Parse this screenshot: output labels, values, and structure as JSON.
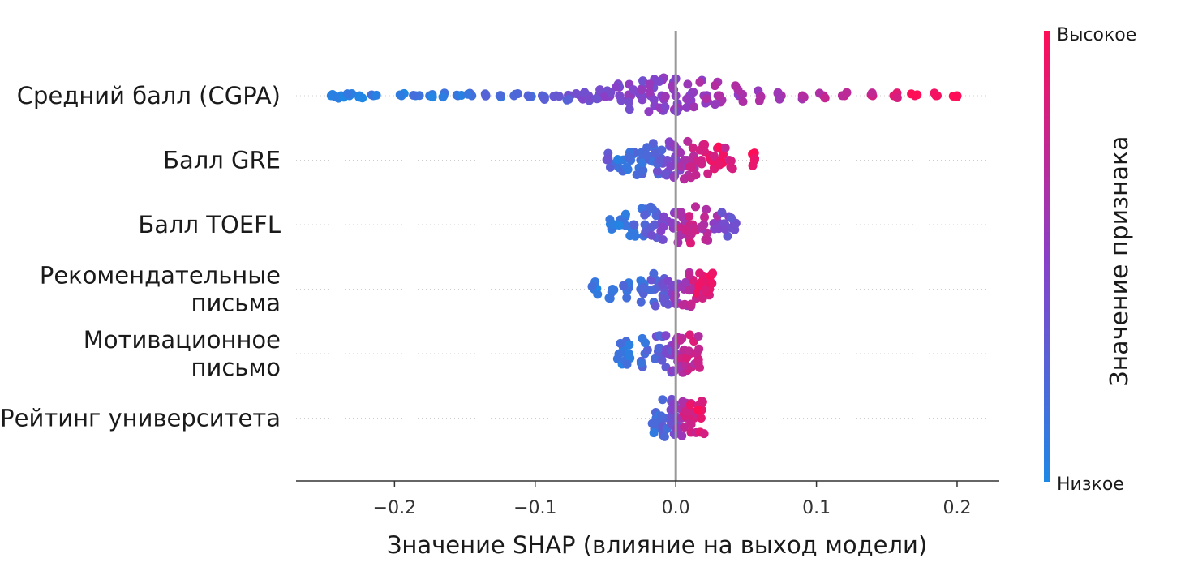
{
  "chart_data": {
    "type": "scatter",
    "subtype": "shap-beeswarm",
    "xlabel": "Значение SHAP (влияние на выход модели)",
    "xlim": [
      -0.27,
      0.23
    ],
    "xticks": [
      -0.2,
      -0.1,
      0.0,
      0.1,
      0.2
    ],
    "xtick_labels": [
      "−0.2",
      "−0.1",
      "0.0",
      "0.1",
      "0.2"
    ],
    "grid": false,
    "colorbar": {
      "title": "Значение признака",
      "high_label": "Высокое",
      "low_label": "Низкое",
      "low_color": "#1e88e5",
      "high_color": "#ff0d57"
    },
    "features": [
      {
        "name_lines": [
          "Средний балл (CGPA)"
        ],
        "points": [
          {
            "x": -0.245,
            "v": 0.02
          },
          {
            "x": -0.238,
            "v": 0.03
          },
          {
            "x": -0.232,
            "v": 0.05
          },
          {
            "x": -0.225,
            "v": 0.04
          },
          {
            "x": -0.215,
            "v": 0.06
          },
          {
            "x": -0.195,
            "v": 0.08
          },
          {
            "x": -0.185,
            "v": 0.1
          },
          {
            "x": -0.175,
            "v": 0.1
          },
          {
            "x": -0.165,
            "v": 0.12
          },
          {
            "x": -0.155,
            "v": 0.14
          },
          {
            "x": -0.145,
            "v": 0.16
          },
          {
            "x": -0.135,
            "v": 0.18
          },
          {
            "x": -0.125,
            "v": 0.2
          },
          {
            "x": -0.115,
            "v": 0.22
          },
          {
            "x": -0.105,
            "v": 0.25
          },
          {
            "x": -0.095,
            "v": 0.28
          },
          {
            "x": -0.085,
            "v": 0.3
          },
          {
            "x": -0.075,
            "v": 0.33
          },
          {
            "x": -0.068,
            "v": 0.35
          },
          {
            "x": -0.062,
            "v": 0.38
          },
          {
            "x": -0.055,
            "v": 0.4
          },
          {
            "x": -0.048,
            "v": 0.42
          },
          {
            "x": -0.04,
            "v": 0.44
          },
          {
            "x": -0.032,
            "v": 0.45
          },
          {
            "x": -0.025,
            "v": 0.46
          },
          {
            "x": -0.018,
            "v": 0.48
          },
          {
            "x": -0.01,
            "v": 0.5
          },
          {
            "x": 0.0,
            "v": 0.52
          },
          {
            "x": 0.01,
            "v": 0.54
          },
          {
            "x": 0.02,
            "v": 0.56
          },
          {
            "x": 0.03,
            "v": 0.58
          },
          {
            "x": 0.045,
            "v": 0.6
          },
          {
            "x": 0.06,
            "v": 0.63
          },
          {
            "x": 0.075,
            "v": 0.66
          },
          {
            "x": 0.09,
            "v": 0.69
          },
          {
            "x": 0.105,
            "v": 0.72
          },
          {
            "x": 0.12,
            "v": 0.76
          },
          {
            "x": 0.14,
            "v": 0.82
          },
          {
            "x": 0.155,
            "v": 0.88
          },
          {
            "x": 0.17,
            "v": 0.94
          },
          {
            "x": 0.185,
            "v": 0.97
          },
          {
            "x": 0.2,
            "v": 0.99
          }
        ]
      },
      {
        "name_lines": [
          "Балл GRE"
        ],
        "points": [
          {
            "x": -0.048,
            "v": 0.3
          },
          {
            "x": -0.04,
            "v": 0.12
          },
          {
            "x": -0.032,
            "v": 0.15
          },
          {
            "x": -0.025,
            "v": 0.2
          },
          {
            "x": -0.018,
            "v": 0.25
          },
          {
            "x": -0.012,
            "v": 0.3
          },
          {
            "x": -0.006,
            "v": 0.4
          },
          {
            "x": 0.0,
            "v": 0.5
          },
          {
            "x": 0.006,
            "v": 0.6
          },
          {
            "x": 0.012,
            "v": 0.7
          },
          {
            "x": 0.018,
            "v": 0.8
          },
          {
            "x": 0.025,
            "v": 0.85
          },
          {
            "x": 0.032,
            "v": 0.9
          },
          {
            "x": 0.038,
            "v": 0.75
          },
          {
            "x": 0.056,
            "v": 0.98
          }
        ]
      },
      {
        "name_lines": [
          "Балл TOEFL"
        ],
        "points": [
          {
            "x": -0.045,
            "v": 0.1
          },
          {
            "x": -0.038,
            "v": 0.12
          },
          {
            "x": -0.03,
            "v": 0.18
          },
          {
            "x": -0.022,
            "v": 0.22
          },
          {
            "x": -0.015,
            "v": 0.3
          },
          {
            "x": -0.008,
            "v": 0.4
          },
          {
            "x": 0.0,
            "v": 0.55
          },
          {
            "x": 0.006,
            "v": 0.7
          },
          {
            "x": 0.012,
            "v": 0.8
          },
          {
            "x": 0.02,
            "v": 0.65
          },
          {
            "x": 0.028,
            "v": 0.55
          },
          {
            "x": 0.035,
            "v": 0.4
          },
          {
            "x": 0.042,
            "v": 0.35
          }
        ]
      },
      {
        "name_lines": [
          "Рекомендательные",
          "письма"
        ],
        "points": [
          {
            "x": -0.058,
            "v": 0.1
          },
          {
            "x": -0.045,
            "v": 0.12
          },
          {
            "x": -0.035,
            "v": 0.15
          },
          {
            "x": -0.025,
            "v": 0.2
          },
          {
            "x": -0.015,
            "v": 0.28
          },
          {
            "x": -0.008,
            "v": 0.35
          },
          {
            "x": 0.0,
            "v": 0.5
          },
          {
            "x": 0.006,
            "v": 0.65
          },
          {
            "x": 0.012,
            "v": 0.75
          },
          {
            "x": 0.018,
            "v": 0.85
          },
          {
            "x": 0.024,
            "v": 0.9
          }
        ]
      },
      {
        "name_lines": [
          "Мотивационное",
          "письмо"
        ],
        "points": [
          {
            "x": -0.04,
            "v": 0.1
          },
          {
            "x": -0.035,
            "v": 0.12
          },
          {
            "x": -0.022,
            "v": 0.2
          },
          {
            "x": -0.012,
            "v": 0.3
          },
          {
            "x": -0.005,
            "v": 0.4
          },
          {
            "x": 0.0,
            "v": 0.55
          },
          {
            "x": 0.005,
            "v": 0.7
          },
          {
            "x": 0.01,
            "v": 0.8
          },
          {
            "x": 0.015,
            "v": 0.75
          }
        ]
      },
      {
        "name_lines": [
          "Рейтинг университета"
        ],
        "points": [
          {
            "x": -0.014,
            "v": 0.15
          },
          {
            "x": -0.008,
            "v": 0.25
          },
          {
            "x": -0.003,
            "v": 0.35
          },
          {
            "x": 0.0,
            "v": 0.45
          },
          {
            "x": 0.004,
            "v": 0.6
          },
          {
            "x": 0.008,
            "v": 0.75
          },
          {
            "x": 0.013,
            "v": 0.85
          },
          {
            "x": 0.018,
            "v": 0.9
          }
        ]
      }
    ]
  }
}
